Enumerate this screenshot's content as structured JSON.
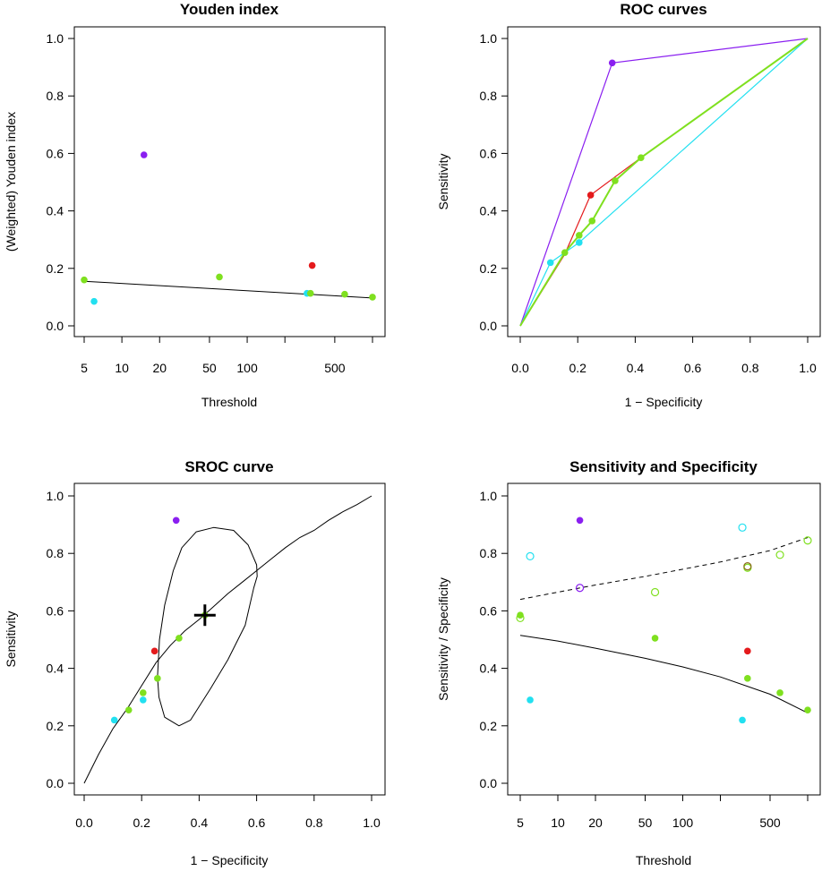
{
  "colors": {
    "red": "#e41a1c",
    "green": "#7fe01f",
    "cyan": "#22e0f0",
    "purple": "#8a1ff0",
    "dark_olive": "#8a6a1a"
  },
  "chart_data": [
    {
      "type": "scatter",
      "title": "Youden index",
      "xlabel": "Threshold",
      "ylabel": "(Weighted) Youden index",
      "xscale": "log",
      "xlim": [
        5,
        1100
      ],
      "ylim": [
        0,
        1
      ],
      "xticks": [
        5,
        10,
        20,
        50,
        100,
        500
      ],
      "xtick_labels": [
        "5",
        "10",
        "20",
        "50",
        "100",
        "500"
      ],
      "xticks_unlabeled": [
        200,
        1000
      ],
      "yticks": [
        0,
        0.2,
        0.4,
        0.6,
        0.8,
        1
      ],
      "ytick_labels": [
        "0.0",
        "0.2",
        "0.4",
        "0.6",
        "0.8",
        "1.0"
      ],
      "points": [
        {
          "x": 5,
          "y": 0.16,
          "color": "green"
        },
        {
          "x": 6,
          "y": 0.085,
          "color": "cyan"
        },
        {
          "x": 15,
          "y": 0.595,
          "color": "purple"
        },
        {
          "x": 60,
          "y": 0.17,
          "color": "green"
        },
        {
          "x": 300,
          "y": 0.113,
          "color": "cyan"
        },
        {
          "x": 320,
          "y": 0.113,
          "color": "green"
        },
        {
          "x": 330,
          "y": 0.21,
          "color": "red"
        },
        {
          "x": 600,
          "y": 0.11,
          "color": "green"
        },
        {
          "x": 1000,
          "y": 0.1,
          "color": "green"
        }
      ],
      "fit_line": {
        "x": [
          5,
          1000
        ],
        "y": [
          0.155,
          0.097
        ]
      }
    },
    {
      "type": "line",
      "title": "ROC curves",
      "xlabel": "1 − Specificity",
      "ylabel": "Sensitivity",
      "xlim": [
        0,
        1
      ],
      "ylim": [
        0,
        1
      ],
      "xticks": [
        0,
        0.2,
        0.4,
        0.6,
        0.8,
        1
      ],
      "xtick_labels": [
        "0.0",
        "0.2",
        "0.4",
        "0.6",
        "0.8",
        "1.0"
      ],
      "yticks": [
        0,
        0.2,
        0.4,
        0.6,
        0.8,
        1
      ],
      "ytick_labels": [
        "0.0",
        "0.2",
        "0.4",
        "0.6",
        "0.8",
        "1.0"
      ],
      "series": [
        {
          "name": "study-purple",
          "color": "purple",
          "x": [
            0,
            0.32,
            1
          ],
          "y": [
            0,
            0.915,
            1
          ],
          "markers": [
            [
              0.32,
              0.915
            ]
          ]
        },
        {
          "name": "study-red",
          "color": "red",
          "x": [
            0,
            0.155,
            0.245,
            0.42,
            1
          ],
          "y": [
            0,
            0.25,
            0.455,
            0.585,
            1
          ],
          "markers": [
            [
              0.245,
              0.455
            ]
          ]
        },
        {
          "name": "study-cyan",
          "color": "cyan",
          "x": [
            0,
            0.105,
            0.205,
            1
          ],
          "y": [
            0,
            0.22,
            0.29,
            1
          ],
          "markers": [
            [
              0.105,
              0.22
            ],
            [
              0.205,
              0.29
            ]
          ]
        },
        {
          "name": "study-green",
          "color": "green",
          "x": [
            0,
            0.155,
            0.205,
            0.25,
            0.33,
            0.42,
            1
          ],
          "y": [
            0,
            0.255,
            0.315,
            0.365,
            0.505,
            0.585,
            1
          ],
          "markers": [
            [
              0.155,
              0.255
            ],
            [
              0.205,
              0.315
            ],
            [
              0.25,
              0.365
            ],
            [
              0.33,
              0.505
            ],
            [
              0.42,
              0.585
            ]
          ]
        }
      ]
    },
    {
      "type": "scatter",
      "title": "SROC curve",
      "xlabel": "1 − Specificity",
      "ylabel": "Sensitivity",
      "xlim": [
        0,
        1
      ],
      "ylim": [
        0,
        1
      ],
      "xticks": [
        0,
        0.2,
        0.4,
        0.6,
        0.8,
        1
      ],
      "xtick_labels": [
        "0.0",
        "0.2",
        "0.4",
        "0.6",
        "0.8",
        "1.0"
      ],
      "yticks": [
        0,
        0.2,
        0.4,
        0.6,
        0.8,
        1
      ],
      "ytick_labels": [
        "0.0",
        "0.2",
        "0.4",
        "0.6",
        "0.8",
        "1.0"
      ],
      "points": [
        {
          "x": 0.32,
          "y": 0.915,
          "color": "purple"
        },
        {
          "x": 0.245,
          "y": 0.46,
          "color": "red"
        },
        {
          "x": 0.105,
          "y": 0.22,
          "color": "cyan"
        },
        {
          "x": 0.205,
          "y": 0.29,
          "color": "cyan"
        },
        {
          "x": 0.155,
          "y": 0.255,
          "color": "green"
        },
        {
          "x": 0.205,
          "y": 0.315,
          "color": "green"
        },
        {
          "x": 0.255,
          "y": 0.365,
          "color": "green"
        },
        {
          "x": 0.33,
          "y": 0.505,
          "color": "green"
        },
        {
          "x": 0.42,
          "y": 0.585,
          "color": "green"
        }
      ],
      "summary_point": {
        "x": 0.42,
        "y": 0.585
      },
      "curve": {
        "x": [
          0,
          0.05,
          0.1,
          0.15,
          0.2,
          0.25,
          0.3,
          0.35,
          0.4,
          0.45,
          0.5,
          0.55,
          0.6,
          0.65,
          0.7,
          0.75,
          0.8,
          0.85,
          0.9,
          0.95,
          1.0
        ],
        "y": [
          0,
          0.1,
          0.19,
          0.26,
          0.34,
          0.42,
          0.48,
          0.53,
          0.57,
          0.615,
          0.66,
          0.7,
          0.74,
          0.78,
          0.82,
          0.855,
          0.88,
          0.915,
          0.945,
          0.97,
          1.0
        ]
      },
      "ellipse": {
        "x": [
          0.59,
          0.56,
          0.5,
          0.44,
          0.37,
          0.33,
          0.28,
          0.26,
          0.255,
          0.262,
          0.28,
          0.31,
          0.34,
          0.39,
          0.45,
          0.52,
          0.57,
          0.6,
          0.602,
          0.59
        ],
        "y": [
          0.68,
          0.55,
          0.43,
          0.33,
          0.22,
          0.2,
          0.23,
          0.3,
          0.37,
          0.5,
          0.62,
          0.74,
          0.82,
          0.875,
          0.89,
          0.88,
          0.83,
          0.76,
          0.72,
          0.68
        ]
      }
    },
    {
      "type": "scatter",
      "title": "Sensitivity and Specificity",
      "xlabel": "Threshold",
      "ylabel": "Sensitivity / Specificity",
      "xscale": "log",
      "xlim": [
        5,
        1100
      ],
      "ylim": [
        0,
        1
      ],
      "xticks": [
        5,
        10,
        20,
        50,
        100,
        500
      ],
      "xtick_labels": [
        "5",
        "10",
        "20",
        "50",
        "100",
        "500"
      ],
      "xticks_unlabeled": [
        200,
        1000
      ],
      "yticks": [
        0,
        0.2,
        0.4,
        0.6,
        0.8,
        1
      ],
      "ytick_labels": [
        "0.0",
        "0.2",
        "0.4",
        "0.6",
        "0.8",
        "1.0"
      ],
      "sensitivity_points": [
        {
          "x": 5,
          "y": 0.585,
          "color": "green"
        },
        {
          "x": 6,
          "y": 0.29,
          "color": "cyan"
        },
        {
          "x": 15,
          "y": 0.915,
          "color": "purple"
        },
        {
          "x": 60,
          "y": 0.505,
          "color": "green"
        },
        {
          "x": 300,
          "y": 0.22,
          "color": "cyan"
        },
        {
          "x": 330,
          "y": 0.365,
          "color": "green"
        },
        {
          "x": 330,
          "y": 0.46,
          "color": "red"
        },
        {
          "x": 600,
          "y": 0.315,
          "color": "green"
        },
        {
          "x": 1000,
          "y": 0.255,
          "color": "green"
        }
      ],
      "specificity_points": [
        {
          "x": 5,
          "y": 0.575,
          "color": "green"
        },
        {
          "x": 6,
          "y": 0.79,
          "color": "cyan"
        },
        {
          "x": 15,
          "y": 0.68,
          "color": "purple"
        },
        {
          "x": 60,
          "y": 0.665,
          "color": "green"
        },
        {
          "x": 300,
          "y": 0.89,
          "color": "cyan"
        },
        {
          "x": 330,
          "y": 0.75,
          "color": "green"
        },
        {
          "x": 330,
          "y": 0.755,
          "color": "dark_olive"
        },
        {
          "x": 600,
          "y": 0.795,
          "color": "green"
        },
        {
          "x": 1000,
          "y": 0.845,
          "color": "green"
        }
      ],
      "sensitivity_line": {
        "x": [
          5,
          10,
          20,
          50,
          100,
          200,
          500,
          1000
        ],
        "y": [
          0.515,
          0.495,
          0.47,
          0.435,
          0.405,
          0.37,
          0.31,
          0.245
        ]
      },
      "specificity_line": {
        "x": [
          5,
          10,
          20,
          50,
          100,
          200,
          500,
          1000
        ],
        "y": [
          0.64,
          0.665,
          0.69,
          0.72,
          0.745,
          0.77,
          0.81,
          0.855
        ]
      }
    }
  ]
}
